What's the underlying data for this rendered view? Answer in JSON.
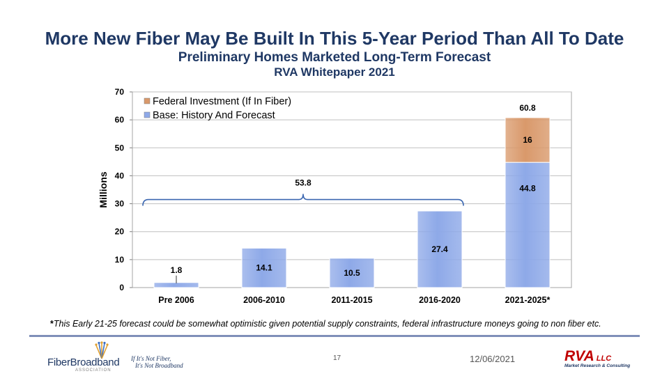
{
  "header": {
    "title": "More New Fiber May Be Built In This 5-Year Period Than All To Date",
    "subtitle": "Preliminary Homes Marketed Long-Term Forecast",
    "source": "RVA Whitepaper 2021"
  },
  "chart_data": {
    "type": "bar",
    "stacked": true,
    "categories": [
      "Pre  2006",
      "2006-2010",
      "2011-2015",
      "2016-2020",
      "2021-2025*"
    ],
    "series": [
      {
        "name": "Base:  History And Forecast",
        "values": [
          1.8,
          14.1,
          10.5,
          27.4,
          44.8
        ],
        "color": "#8ea9e8"
      },
      {
        "name": "Federal Investment (If In Fiber)",
        "values": [
          0,
          0,
          0,
          0,
          16
        ],
        "color": "#d9996b"
      }
    ],
    "totals": [
      {
        "category_index": 4,
        "label": "60.8"
      }
    ],
    "bracket": {
      "from_index": 0,
      "to_index": 3,
      "label": "53.8"
    },
    "ylabel": "Millions",
    "xlabel": "",
    "ylim": [
      0,
      70
    ],
    "yticks": [
      0,
      10,
      20,
      30,
      40,
      50,
      60,
      70
    ],
    "grid": true,
    "legend": "top-left"
  },
  "footer": {
    "footnote_mark": "*",
    "footnote": "This Early 21-25 forecast could be somewhat optimistic given potential supply constraints, federal infrastructure moneys going to non fiber etc.",
    "page_number": "17",
    "date": "12/06/2021",
    "logo_left_name": "FiberBroadband",
    "logo_left_sub": "ASSOCIATION",
    "tagline_1": "If It's Not Fiber,",
    "tagline_2": "It's Not Broadband",
    "logo_right_name": "RVA",
    "logo_right_suffix": "LLC",
    "logo_right_sub": "Market Research & Consulting"
  }
}
